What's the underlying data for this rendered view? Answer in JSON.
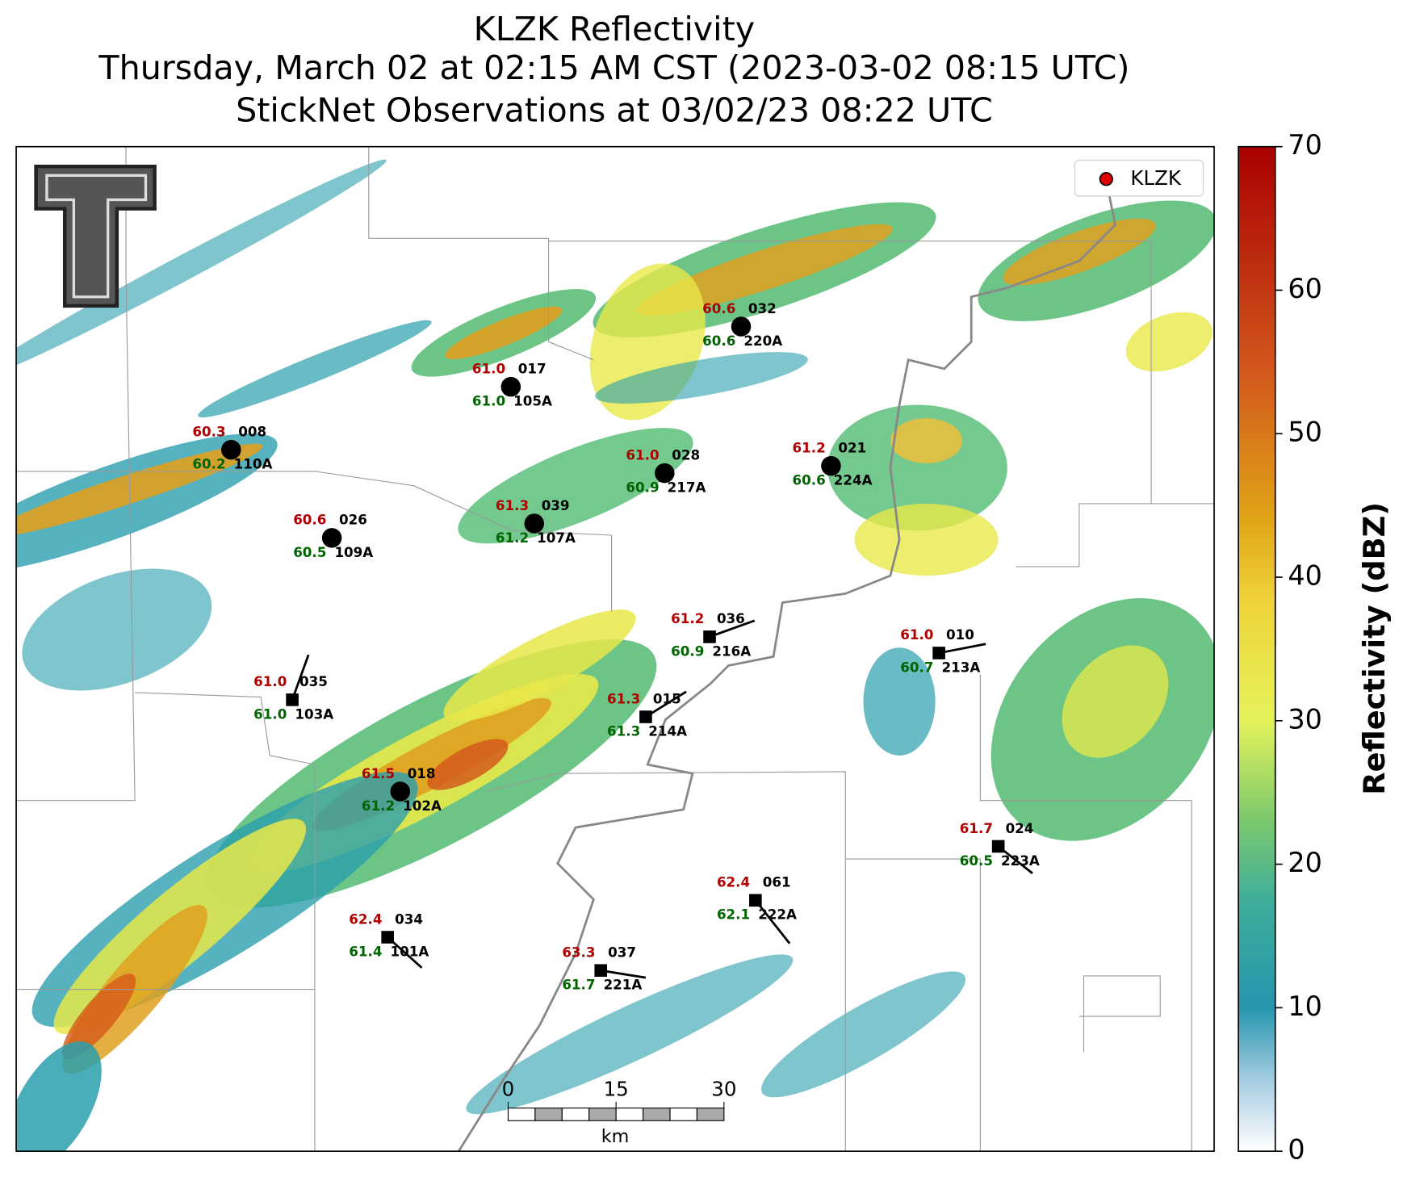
{
  "title": {
    "line1": "KLZK Reflectivity",
    "line2": "Thursday, March 02 at 02:15 AM CST (2023-03-02 08:15 UTC)",
    "line3": "StickNet Observations at 03/02/23 08:22 UTC"
  },
  "legend": {
    "label": "KLZK"
  },
  "stations": [
    {
      "temp": "60.3",
      "dewpoint": "60.2",
      "code": "008",
      "id": "110A",
      "marker": "circle"
    },
    {
      "temp": "61.0",
      "dewpoint": "61.0",
      "code": "017",
      "id": "105A",
      "marker": "circle"
    },
    {
      "temp": "60.6",
      "dewpoint": "60.6",
      "code": "032",
      "id": "220A",
      "marker": "circle"
    },
    {
      "temp": "60.6",
      "dewpoint": "60.5",
      "code": "026",
      "id": "109A",
      "marker": "circle"
    },
    {
      "temp": "61.3",
      "dewpoint": "61.2",
      "code": "039",
      "id": "107A",
      "marker": "circle"
    },
    {
      "temp": "61.0",
      "dewpoint": "60.9",
      "code": "028",
      "id": "217A",
      "marker": "circle"
    },
    {
      "temp": "61.2",
      "dewpoint": "60.6",
      "code": "021",
      "id": "224A",
      "marker": "circle"
    },
    {
      "temp": "61.2",
      "dewpoint": "60.9",
      "code": "036",
      "id": "216A",
      "marker": "square"
    },
    {
      "temp": "61.0",
      "dewpoint": "60.7",
      "code": "010",
      "id": "213A",
      "marker": "square"
    },
    {
      "temp": "61.0",
      "dewpoint": "61.0",
      "code": "035",
      "id": "103A",
      "marker": "square"
    },
    {
      "temp": "61.3",
      "dewpoint": "61.3",
      "code": "015",
      "id": "214A",
      "marker": "square"
    },
    {
      "temp": "61.5",
      "dewpoint": "61.2",
      "code": "018",
      "id": "102A",
      "marker": "circle"
    },
    {
      "temp": "61.7",
      "dewpoint": "60.5",
      "code": "024",
      "id": "223A",
      "marker": "square"
    },
    {
      "temp": "62.4",
      "dewpoint": "62.1",
      "code": "061",
      "id": "222A",
      "marker": "square"
    },
    {
      "temp": "62.4",
      "dewpoint": "61.4",
      "code": "034",
      "id": "101A",
      "marker": "square"
    },
    {
      "temp": "63.3",
      "dewpoint": "61.7",
      "code": "037",
      "id": "221A",
      "marker": "square"
    }
  ],
  "colorbar": {
    "label": "Reflectivity (dBZ)",
    "lim": [
      0,
      70
    ],
    "ticks": [
      0,
      10,
      20,
      30,
      40,
      50,
      60,
      70
    ]
  },
  "scale_bar": {
    "ticks": [
      0,
      15,
      30
    ],
    "unit": "km"
  }
}
